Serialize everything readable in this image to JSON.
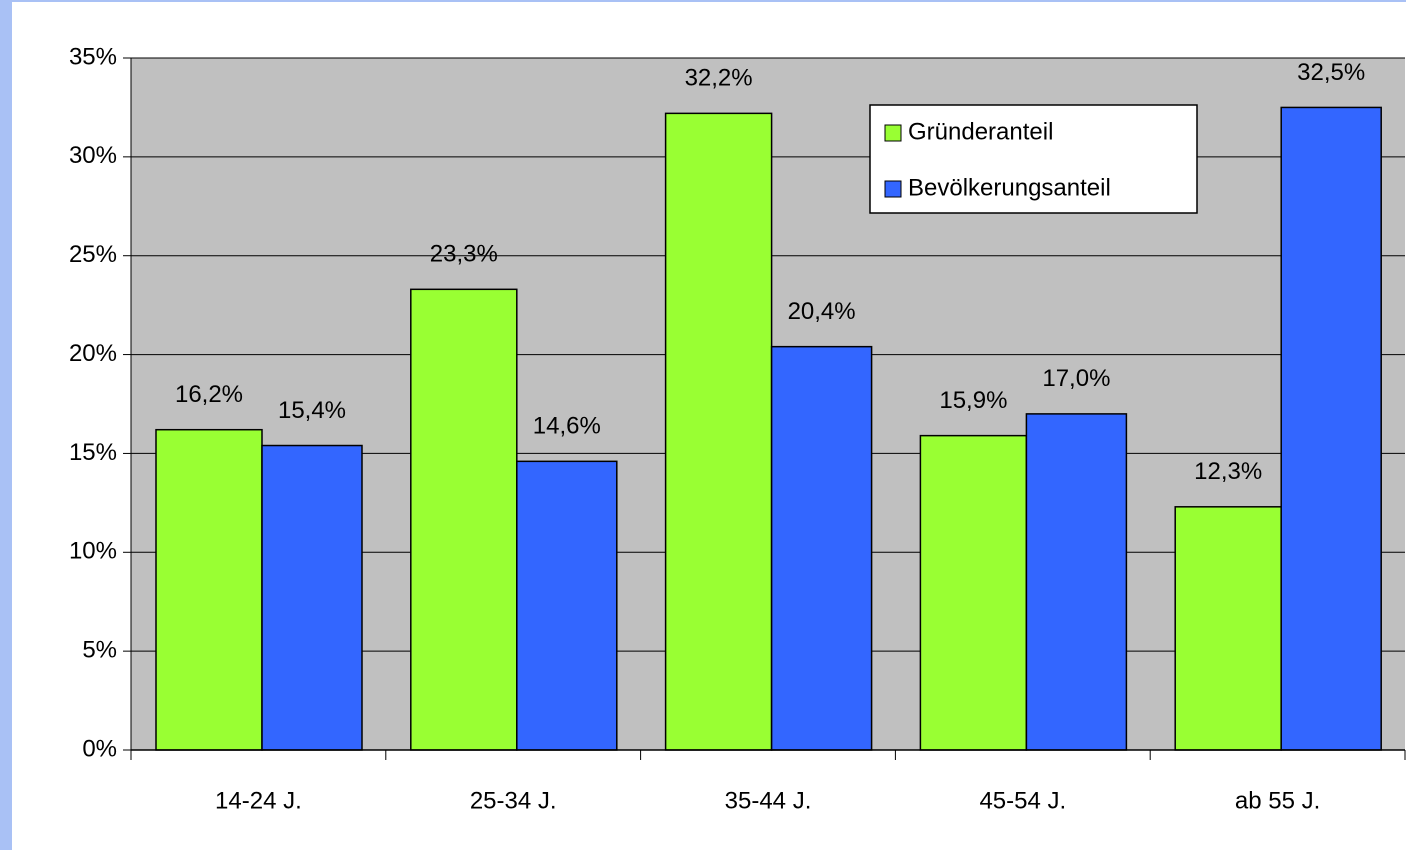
{
  "chart_data": {
    "type": "bar",
    "categories": [
      "14-24 J.",
      "25-34 J.",
      "35-44 J.",
      "45-54 J.",
      "ab 55 J."
    ],
    "series": [
      {
        "name": "Gründeranteil",
        "color": "#99ff33",
        "values": [
          16.2,
          23.3,
          32.2,
          15.9,
          12.3
        ],
        "value_labels": [
          "16,2%",
          "23,3%",
          "32,2%",
          "15,9%",
          "12,3%"
        ]
      },
      {
        "name": "Bevölkerungsanteil",
        "color": "#3366ff",
        "values": [
          15.4,
          14.6,
          20.4,
          17.0,
          32.5
        ],
        "value_labels": [
          "15,4%",
          "14,6%",
          "20,4%",
          "17,0%",
          "32,5%"
        ]
      }
    ],
    "ylim": [
      0,
      35
    ],
    "yticks": [
      {
        "value": 0,
        "label": "0%"
      },
      {
        "value": 5,
        "label": "5%"
      },
      {
        "value": 10,
        "label": "10%"
      },
      {
        "value": 15,
        "label": "15%"
      },
      {
        "value": 20,
        "label": "20%"
      },
      {
        "value": 25,
        "label": "25%"
      },
      {
        "value": 30,
        "label": "30%"
      },
      {
        "value": 35,
        "label": "35%"
      }
    ],
    "grid": true,
    "legend": "upper right"
  }
}
